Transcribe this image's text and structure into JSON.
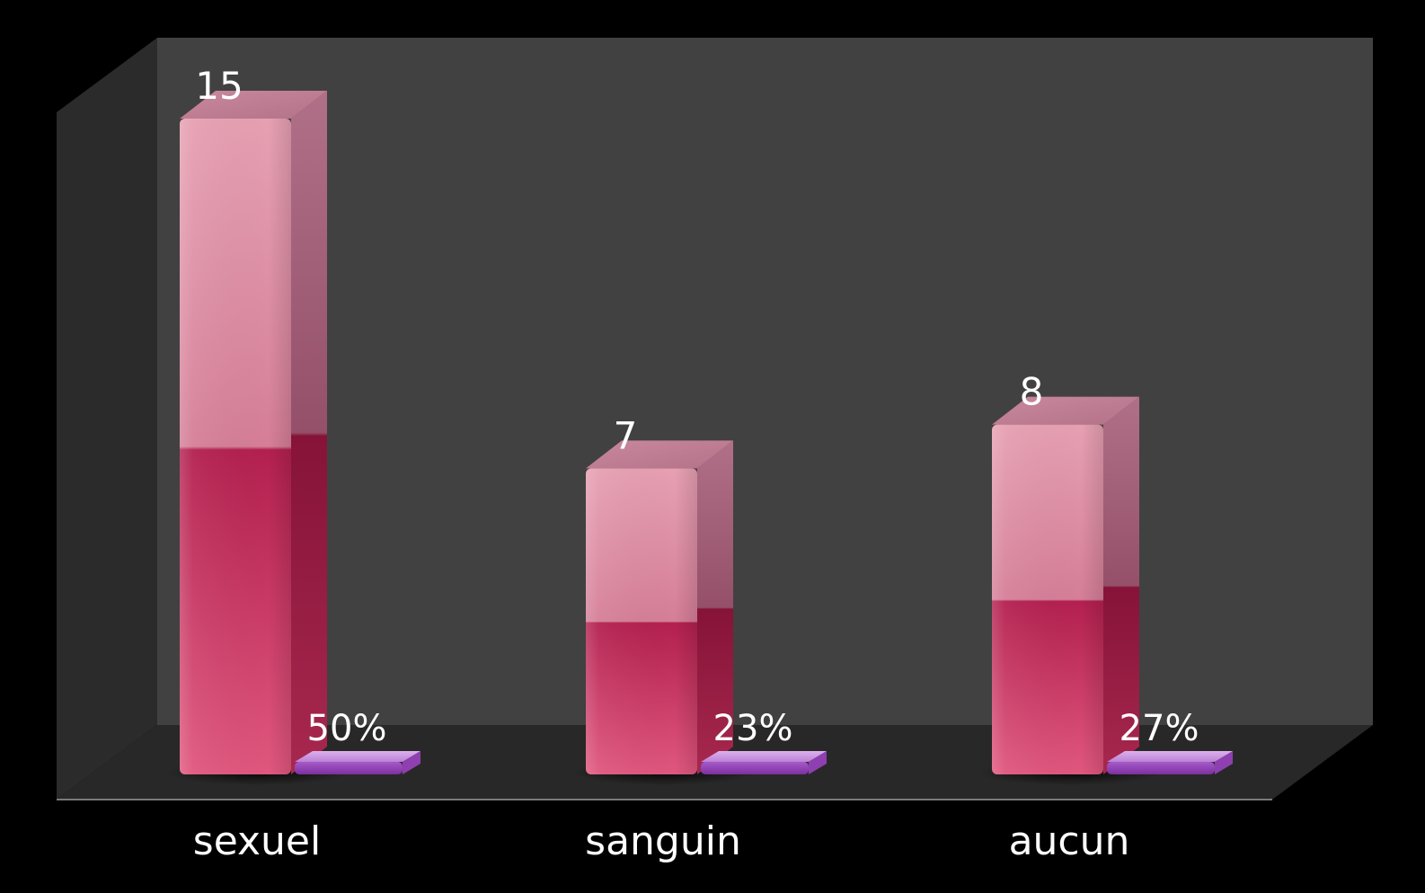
{
  "chart_data": {
    "type": "bar",
    "style": "3d-column",
    "categories": [
      "sexuel",
      "sanguin",
      "aucun"
    ],
    "series": [
      {
        "values": [
          15,
          7,
          8
        ],
        "labels": [
          "15",
          "7",
          "8"
        ],
        "color": "#d2406e"
      },
      {
        "values": [
          50,
          23,
          27
        ],
        "labels": [
          "50%",
          "23%",
          "27%"
        ],
        "color": "#b46ad8"
      }
    ],
    "ylim": [
      0,
      16
    ],
    "grid": false,
    "legend": "none",
    "background_color": "#000000",
    "wall_color": "#404040",
    "floor_color": "#2a2a2a"
  }
}
